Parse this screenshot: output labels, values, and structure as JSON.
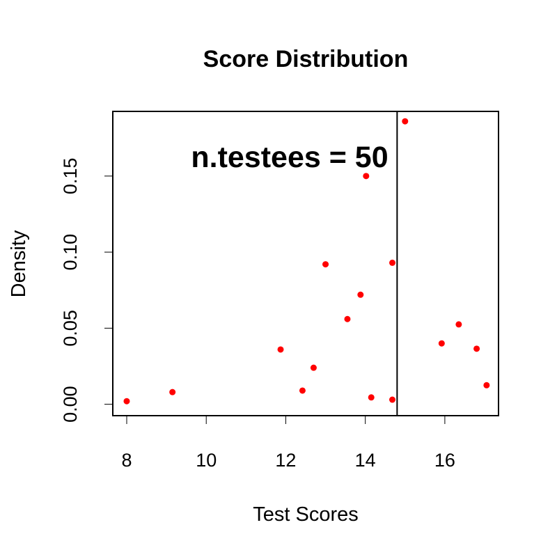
{
  "chart_data": {
    "type": "scatter",
    "title": "Score Distribution",
    "xlabel": "Test Scores",
    "ylabel": "Density",
    "annotation": "n.testees = 50",
    "xlim": [
      7.65,
      17.35
    ],
    "ylim": [
      -0.0075,
      0.1925
    ],
    "x_ticks": [
      8,
      10,
      12,
      14,
      16
    ],
    "x_tick_labels": [
      "8",
      "10",
      "12",
      "14",
      "16"
    ],
    "y_ticks": [
      0.0,
      0.05,
      0.1,
      0.15
    ],
    "y_tick_labels": [
      "0.00",
      "0.05",
      "0.10",
      "0.15"
    ],
    "vline_x": 14.8,
    "point_color": "#FF0000",
    "grid": false,
    "points": [
      {
        "x": 8.0,
        "y": 0.002
      },
      {
        "x": 9.15,
        "y": 0.008
      },
      {
        "x": 11.87,
        "y": 0.036
      },
      {
        "x": 12.42,
        "y": 0.009
      },
      {
        "x": 12.7,
        "y": 0.024
      },
      {
        "x": 13.0,
        "y": 0.092
      },
      {
        "x": 13.55,
        "y": 0.056
      },
      {
        "x": 13.88,
        "y": 0.072
      },
      {
        "x": 14.02,
        "y": 0.15
      },
      {
        "x": 14.15,
        "y": 0.0045
      },
      {
        "x": 14.68,
        "y": 0.003
      },
      {
        "x": 14.68,
        "y": 0.093
      },
      {
        "x": 15.0,
        "y": 0.186
      },
      {
        "x": 15.92,
        "y": 0.04
      },
      {
        "x": 16.35,
        "y": 0.0525
      },
      {
        "x": 16.8,
        "y": 0.0365
      },
      {
        "x": 17.05,
        "y": 0.0125
      }
    ]
  }
}
